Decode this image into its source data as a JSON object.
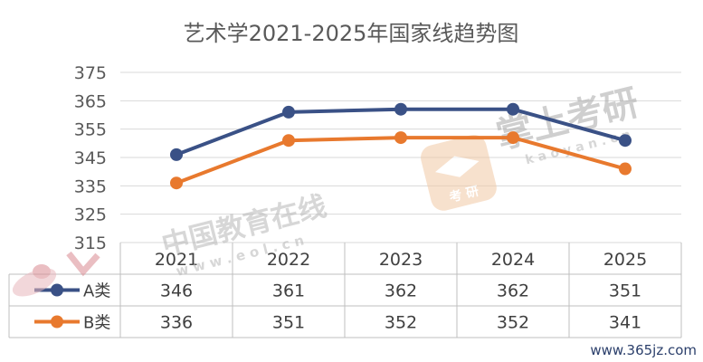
{
  "chart_data": {
    "type": "line",
    "title": "艺术学2021-2025年国家线趋势图",
    "categories": [
      "2021",
      "2022",
      "2023",
      "2024",
      "2025"
    ],
    "series": [
      {
        "name": "A类",
        "values": [
          346,
          361,
          362,
          362,
          351
        ],
        "color": "#3A5186"
      },
      {
        "name": "B类",
        "values": [
          336,
          351,
          352,
          352,
          341
        ],
        "color": "#E8792E"
      }
    ],
    "yticks": [
      315,
      325,
      335,
      345,
      355,
      365,
      375
    ],
    "ylim": [
      315,
      375
    ],
    "xlabel": "",
    "ylabel": "",
    "grid": true,
    "legend": "data-table"
  },
  "watermarks": {
    "eol_cn": "中国教育在线",
    "eol_url": "w w w . e o l . c n",
    "zsky_cn": "掌上考研",
    "zsky_url": "k a o y a n . c n",
    "badge": "考 研",
    "site": "www.365jz.com"
  }
}
